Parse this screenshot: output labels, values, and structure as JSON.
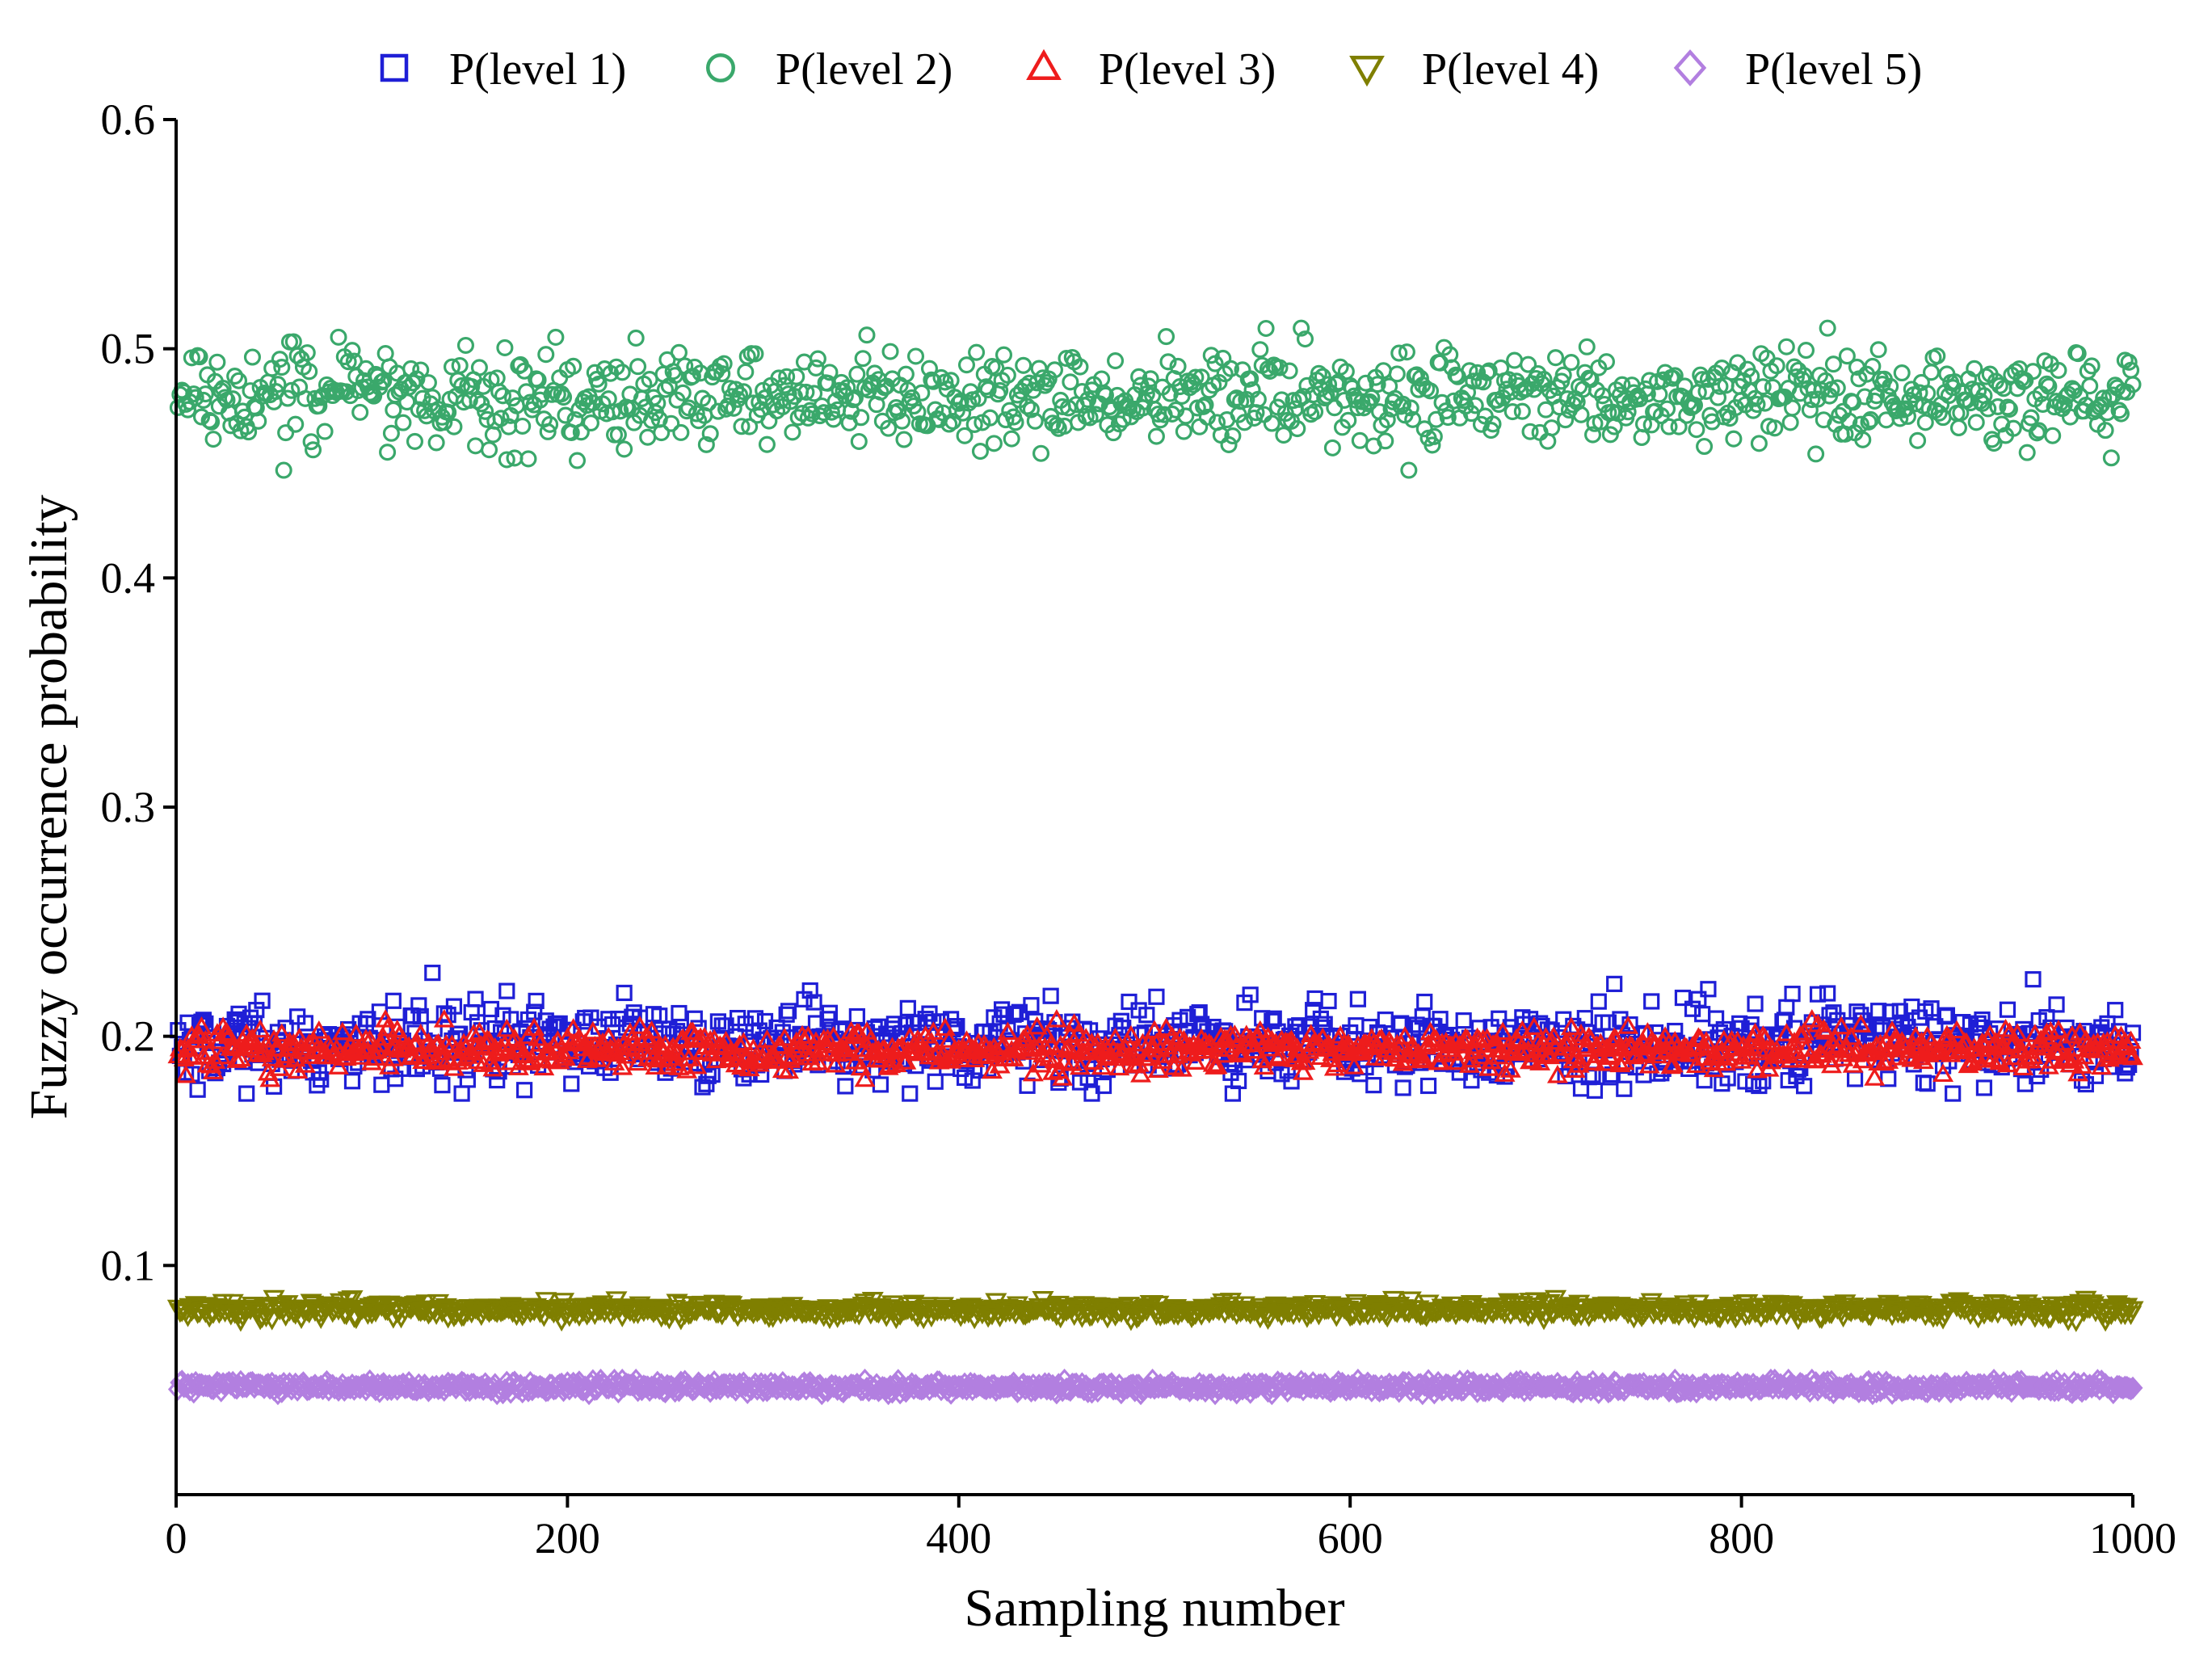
{
  "chart_data": {
    "type": "scatter",
    "title": "",
    "xlabel": "Sampling number",
    "ylabel": "Fuzzy occurrence probability",
    "xlim": [
      0,
      1000
    ],
    "ylim": [
      0,
      0.6
    ],
    "xticks": [
      0,
      200,
      400,
      600,
      800,
      1000
    ],
    "xtick_labels": [
      "0",
      "200",
      "400",
      "600",
      "800",
      "1000"
    ],
    "yticks": [
      0.1,
      0.2,
      0.3,
      0.4,
      0.5,
      0.6
    ],
    "ytick_labels": [
      "0.1",
      "0.2",
      "0.3",
      "0.4",
      "0.5",
      "0.6"
    ],
    "grid": false,
    "legend_position": "top",
    "n_samples": 1000,
    "series": [
      {
        "name": "P(level 1)",
        "marker": "square",
        "color": "#1f1fd6",
        "mean": 0.197,
        "spread": 0.009,
        "min": 0.175,
        "max": 0.231
      },
      {
        "name": "P(level 2)",
        "marker": "circle",
        "color": "#3aa86b",
        "mean": 0.479,
        "spread": 0.01,
        "min": 0.447,
        "max": 0.509
      },
      {
        "name": "P(level 3)",
        "marker": "triangle-up",
        "color": "#ee1c1c",
        "mean": 0.194,
        "spread": 0.0045,
        "min": 0.181,
        "max": 0.207
      },
      {
        "name": "P(level 4)",
        "marker": "triangle-down",
        "color": "#7f7f00",
        "mean": 0.081,
        "spread": 0.0018,
        "min": 0.076,
        "max": 0.086
      },
      {
        "name": "P(level 5)",
        "marker": "diamond",
        "color": "#b27fe0",
        "mean": 0.047,
        "spread": 0.0012,
        "min": 0.044,
        "max": 0.05
      }
    ]
  }
}
